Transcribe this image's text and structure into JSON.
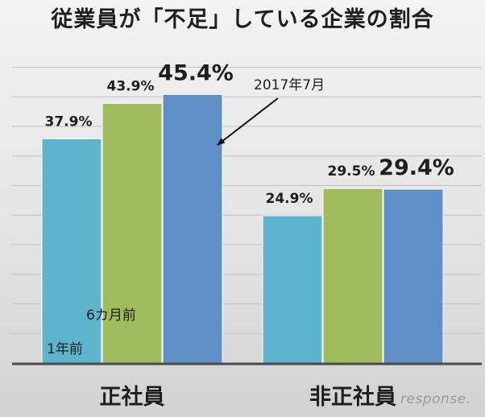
{
  "chart_data": {
    "type": "bar",
    "title": "従業員が「不足」している企業の割合",
    "categories": [
      "正社員",
      "非正社員"
    ],
    "series": [
      {
        "name": "1年前",
        "values": [
          37.9,
          24.9
        ],
        "color": "#5eb4cd"
      },
      {
        "name": "6カ月前",
        "values": [
          43.9,
          29.5
        ],
        "color": "#9fbb5c"
      },
      {
        "name": "2017年7月",
        "values": [
          45.4,
          29.4
        ],
        "color": "#5e8fc6"
      }
    ],
    "data_labels": [
      [
        "37.9%",
        "24.9%"
      ],
      [
        "43.9%",
        "29.5%"
      ],
      [
        "45.4%",
        "29.4%"
      ]
    ],
    "ylim": [
      0,
      50
    ],
    "grid": true,
    "xlabel": "",
    "ylabel": ""
  },
  "watermark": "response."
}
